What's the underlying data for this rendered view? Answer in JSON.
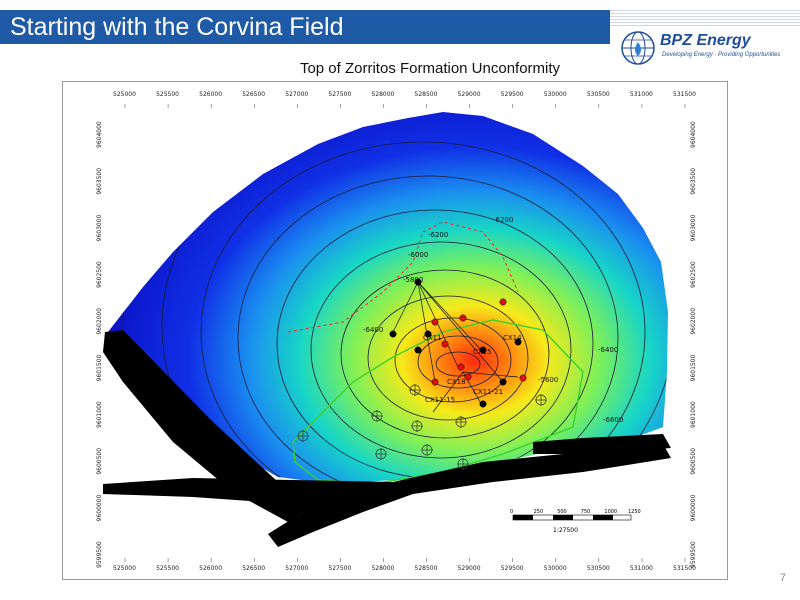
{
  "slide": {
    "title": "Starting with the Corvina Field",
    "page_number": "7"
  },
  "logo": {
    "name": "BPZ Energy",
    "tagline": "Developing Energy · Providing Opportunities",
    "icon": "globe-icon",
    "accent": "#1f4e9a"
  },
  "map": {
    "heading": "Top of Zorritos Formation Unconformity",
    "easting_ticks": [
      "525000",
      "525500",
      "526000",
      "526500",
      "527000",
      "527500",
      "528000",
      "528500",
      "529000",
      "529500",
      "530000",
      "530500",
      "531000",
      "531500"
    ],
    "northing_ticks": [
      "9604000",
      "9603500",
      "9603000",
      "9602500",
      "9602000",
      "9601500",
      "9601000",
      "9600500",
      "9600000",
      "9599500"
    ],
    "scale": {
      "label": "1:27500",
      "ticks": [
        "0",
        "250",
        "500",
        "750",
        "1000",
        "1250"
      ]
    },
    "wells": [
      "CX11",
      "CX15",
      "CX14",
      "CX18",
      "CX11-15",
      "CX11-21"
    ],
    "contour_labels": [
      "-6000",
      "-6200",
      "-6400",
      "-6400",
      "-6600",
      "-6200",
      "-5800",
      "-5600"
    ],
    "colors": {
      "deep": "#0b1dd6",
      "mid": "#1ad6c8",
      "shallow": "#e6f020",
      "crest": "#ff3a12",
      "fault": "#000000",
      "boundary": "#39d22c"
    }
  }
}
